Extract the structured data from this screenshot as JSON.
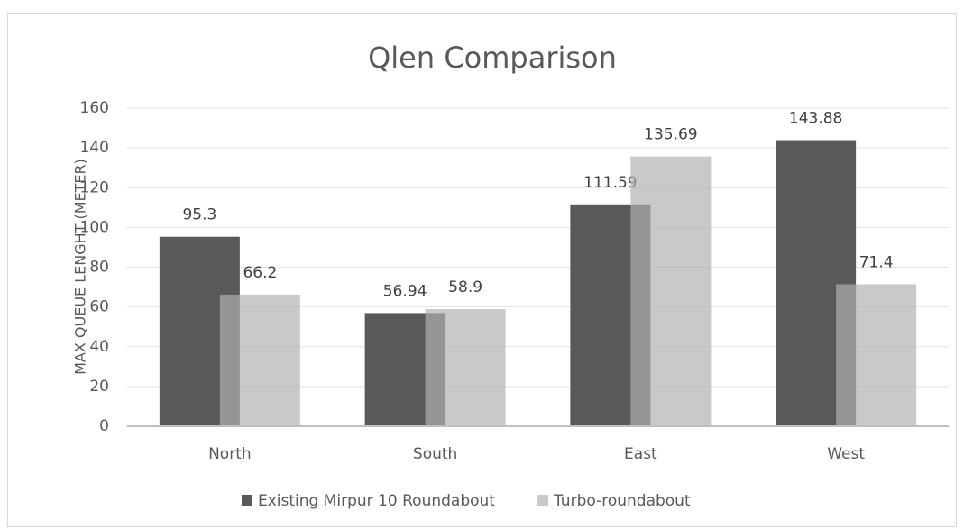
{
  "chart_data": {
    "type": "bar",
    "title": "Qlen Comparison",
    "y_label": "MAX QUEUE LENGHT (METER)",
    "categories": [
      "North",
      "South",
      "East",
      "West"
    ],
    "series": [
      {
        "name": "Existing Mirpur 10 Roundabout",
        "color": "#595959",
        "values": [
          95.3,
          56.94,
          111.59,
          143.88
        ]
      },
      {
        "name": "Turbo-roundabout",
        "color": "#b1b1b1",
        "values": [
          66.2,
          58.9,
          135.69,
          71.4
        ]
      }
    ],
    "ylim": [
      0,
      160
    ],
    "yticks": [
      0,
      20,
      40,
      60,
      80,
      100,
      120,
      140,
      160
    ],
    "grid": true,
    "legend": "bottom"
  }
}
